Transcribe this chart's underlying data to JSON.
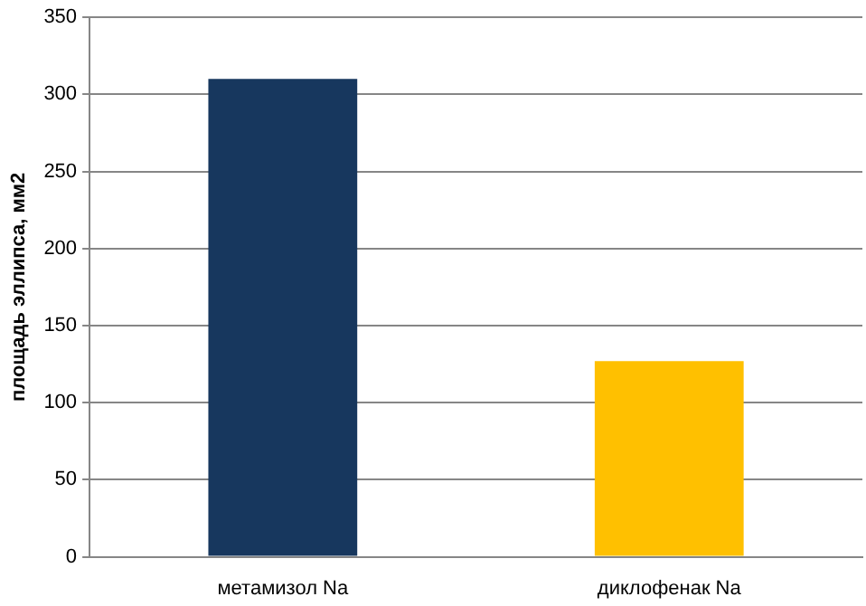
{
  "chart_data": {
    "type": "bar",
    "ylabel": "площадь эллипса, мм2",
    "categories": [
      "метамизол Na",
      "диклофенак Na"
    ],
    "values": [
      310,
      127
    ],
    "colors": [
      "#17375e",
      "#ffc000"
    ],
    "ylim": [
      0,
      350
    ],
    "yticks": [
      0,
      50,
      100,
      150,
      200,
      250,
      300,
      350
    ],
    "grid": "y"
  }
}
